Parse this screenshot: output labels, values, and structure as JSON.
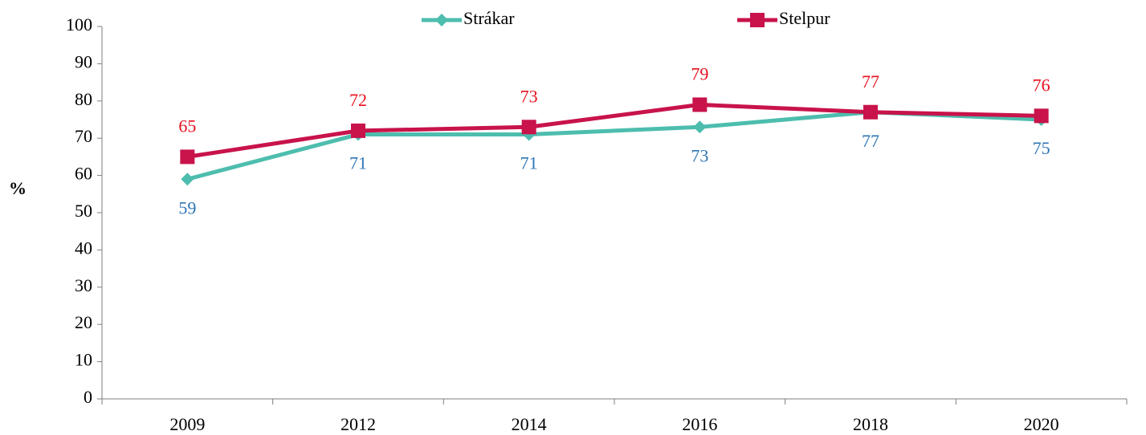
{
  "chart_data": {
    "type": "line",
    "ylabel": "%",
    "categories": [
      "2009",
      "2012",
      "2014",
      "2016",
      "2018",
      "2020"
    ],
    "series": [
      {
        "name": "Strákar",
        "color": "#4dbdae",
        "label_color": "#2e75b6",
        "marker": "diamond",
        "label_position": "below",
        "values": [
          59,
          71,
          71,
          73,
          77,
          75
        ]
      },
      {
        "name": "Stelpur",
        "color": "#c8134b",
        "label_color": "#e8101e",
        "marker": "square",
        "label_position": "above",
        "values": [
          65,
          72,
          73,
          79,
          77,
          76
        ]
      }
    ],
    "ylim": [
      0,
      100
    ],
    "yticks": [
      0,
      10,
      20,
      30,
      40,
      50,
      60,
      70,
      80,
      90,
      100
    ],
    "grid": false,
    "legend": "top"
  }
}
